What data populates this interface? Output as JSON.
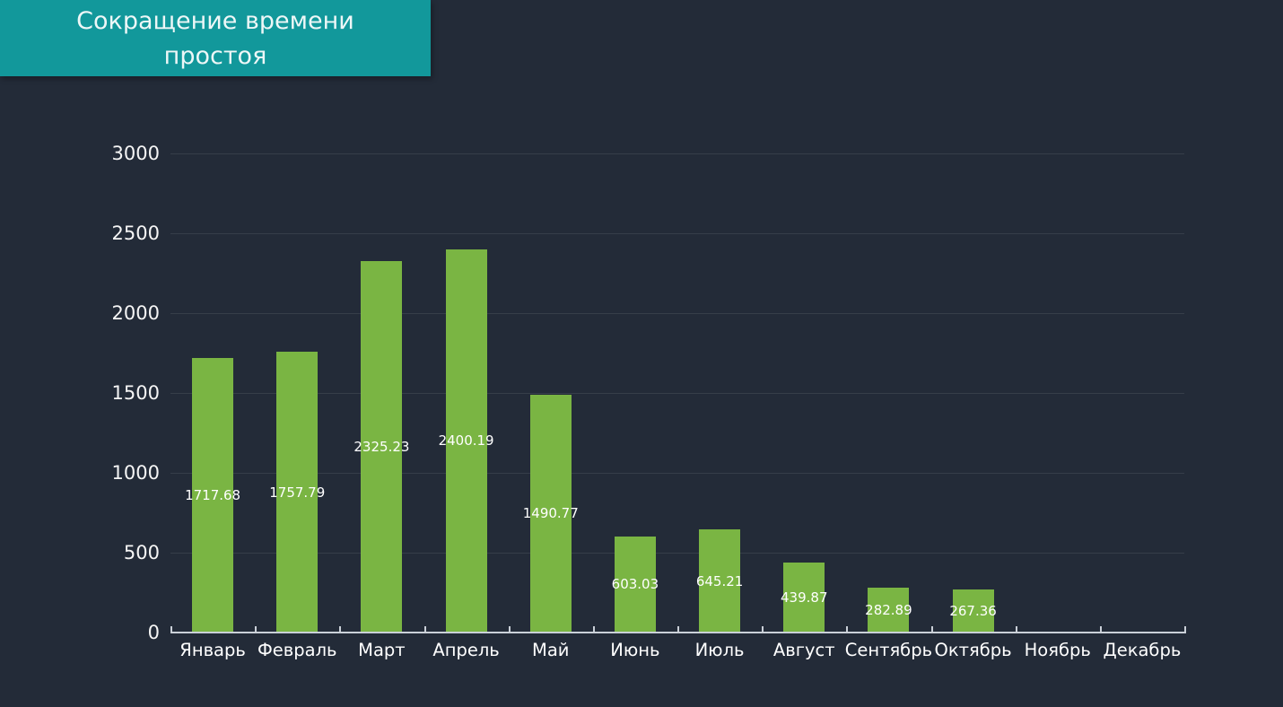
{
  "page": {
    "background": "#232B38"
  },
  "banner": {
    "title_line1": "Сокращение времени",
    "title_line2": "простоя",
    "background": "#12989B",
    "text_color": "#EDF7F7"
  },
  "chart_data": {
    "type": "bar",
    "title": "Сокращение времени простоя",
    "categories": [
      "Январь",
      "Февраль",
      "Март",
      "Апрель",
      "Май",
      "Июнь",
      "Июль",
      "Август",
      "Сентябрь",
      "Октябрь",
      "Ноябрь",
      "Декабрь"
    ],
    "values": [
      1717.68,
      1757.79,
      2325.23,
      2400.19,
      1490.77,
      603.03,
      645.21,
      439.87,
      282.89,
      267.36,
      null,
      null
    ],
    "bar_labels": [
      "1717.68",
      "1757.79",
      "2325.23",
      "2400.19",
      "1490.77",
      "603.03",
      "645.21",
      "439.87",
      "282.89",
      "267.36",
      "",
      ""
    ],
    "xlabel": "",
    "ylabel": "",
    "ylim": [
      0,
      3000
    ],
    "yticks": [
      0,
      500,
      1000,
      1500,
      2000,
      2500,
      3000
    ],
    "grid": true,
    "legend": "none",
    "bar_color": "#7AB543",
    "value_label_color": "#FFFFFF",
    "tick_label_color": "#F5F5F5"
  }
}
